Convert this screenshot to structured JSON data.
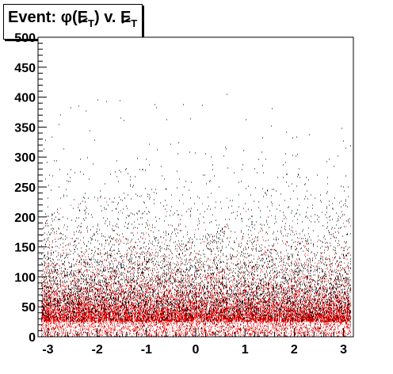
{
  "chart_data": {
    "type": "scatter",
    "title": {
      "prefix": "Event: ",
      "phi": "φ",
      "paren_open": "(",
      "met": "E",
      "sub": "T",
      "paren_close": ")",
      "mid": " v. ",
      "met2": "E",
      "sub2": "T"
    },
    "xlim": [
      -3.2,
      3.2
    ],
    "ylim": [
      0,
      500
    ],
    "x_ticks": [
      -3,
      -2,
      -1,
      0,
      1,
      2,
      3
    ],
    "x_tick_labels": [
      "-3",
      "-2",
      "-1",
      "0",
      "1",
      "2",
      "3"
    ],
    "y_ticks": [
      0,
      50,
      100,
      150,
      200,
      250,
      300,
      350,
      400,
      450,
      500
    ],
    "y_tick_labels": [
      "0",
      "50",
      "100",
      "150",
      "200",
      "250",
      "300",
      "350",
      "400",
      "450",
      "500"
    ],
    "grid": false,
    "series": [
      {
        "color": "#000000",
        "distribution": {
          "x_range": [
            -3.14159,
            3.14159
          ],
          "y_peak": 25,
          "y_decay": 55,
          "n": 16000
        }
      },
      {
        "color": "#ff0000",
        "distribution": {
          "x_range": [
            -3.14159,
            3.14159
          ],
          "y_peak": 25,
          "y_decay": 30,
          "n": 14000
        }
      }
    ]
  }
}
